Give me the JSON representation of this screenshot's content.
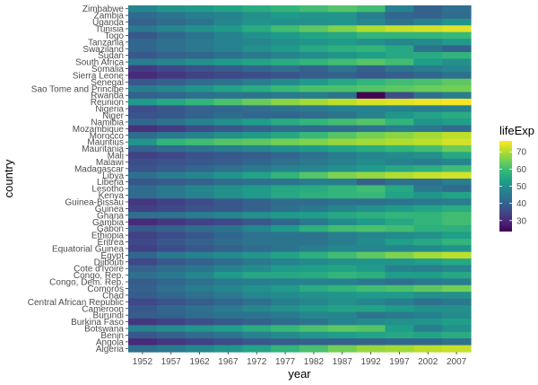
{
  "chart_data": {
    "type": "heatmap",
    "xlabel": "year",
    "ylabel": "country",
    "x": [
      "1952",
      "1957",
      "1962",
      "1967",
      "1972",
      "1977",
      "1982",
      "1987",
      "1992",
      "1997",
      "2002",
      "2007"
    ],
    "y_top_to_bottom": [
      "Zimbabwe",
      "Zambia",
      "Uganda",
      "Tunisia",
      "Togo",
      "Tanzania",
      "Swaziland",
      "Sudan",
      "South Africa",
      "Somalia",
      "Sierra Leone",
      "Senegal",
      "Sao Tome and Principe",
      "Rwanda",
      "Reunion",
      "Nigeria",
      "Niger",
      "Namibia",
      "Mozambique",
      "Morocco",
      "Mauritius",
      "Mauritania",
      "Mali",
      "Malawi",
      "Madagascar",
      "Libya",
      "Liberia",
      "Lesotho",
      "Kenya",
      "Guinea-Bissau",
      "Guinea",
      "Ghana",
      "Gambia",
      "Gabon",
      "Ethiopia",
      "Eritrea",
      "Equatorial Guinea",
      "Egypt",
      "Djibouti",
      "Cote d'Ivoire",
      "Congo, Rep.",
      "Congo, Dem. Rep.",
      "Comoros",
      "Chad",
      "Central African Republic",
      "Cameroon",
      "Burundi",
      "Burkina Faso",
      "Botswana",
      "Benin",
      "Angola",
      "Algeria"
    ],
    "values": [
      [
        48,
        51,
        52,
        54,
        56,
        58,
        60,
        62,
        60,
        47,
        40,
        43
      ],
      [
        42,
        44,
        46,
        47,
        50,
        52,
        51,
        51,
        46,
        41,
        40,
        42
      ],
      [
        40,
        42,
        44,
        48,
        51,
        50,
        50,
        51,
        48,
        44,
        47,
        51
      ],
      [
        45,
        48,
        50,
        52,
        56,
        60,
        63,
        66,
        70,
        72,
        73,
        74
      ],
      [
        38,
        41,
        44,
        47,
        50,
        52,
        54,
        55,
        58,
        58,
        58,
        59
      ],
      [
        41,
        43,
        45,
        47,
        48,
        50,
        51,
        52,
        50,
        48,
        49,
        52
      ],
      [
        41,
        43,
        45,
        47,
        50,
        52,
        55,
        57,
        58,
        55,
        44,
        40
      ],
      [
        38,
        40,
        41,
        43,
        45,
        47,
        49,
        51,
        53,
        55,
        56,
        58
      ],
      [
        46,
        48,
        50,
        52,
        54,
        56,
        58,
        60,
        62,
        60,
        53,
        50
      ],
      [
        33,
        35,
        37,
        39,
        41,
        43,
        40,
        44,
        40,
        44,
        46,
        48
      ],
      [
        30,
        32,
        34,
        35,
        36,
        37,
        39,
        40,
        38,
        39,
        41,
        43
      ],
      [
        38,
        40,
        42,
        44,
        46,
        49,
        52,
        55,
        58,
        60,
        61,
        63
      ],
      [
        46,
        48,
        51,
        54,
        56,
        59,
        61,
        61,
        62,
        63,
        64,
        65
      ],
      [
        40,
        41,
        43,
        44,
        44,
        45,
        46,
        44,
        24,
        36,
        43,
        46
      ],
      [
        52,
        55,
        58,
        61,
        64,
        67,
        69,
        71,
        73,
        74,
        75,
        76
      ],
      [
        36,
        38,
        40,
        41,
        42,
        44,
        45,
        47,
        47,
        47,
        46,
        47
      ],
      [
        37,
        38,
        40,
        42,
        41,
        41,
        42,
        44,
        47,
        51,
        54,
        56
      ],
      [
        41,
        44,
        47,
        50,
        53,
        56,
        58,
        60,
        62,
        58,
        51,
        53
      ],
      [
        31,
        33,
        36,
        38,
        40,
        42,
        42,
        42,
        44,
        46,
        45,
        42
      ],
      [
        42,
        45,
        47,
        50,
        52,
        55,
        59,
        62,
        65,
        67,
        69,
        71
      ],
      [
        51,
        58,
        60,
        62,
        63,
        65,
        66,
        68,
        69,
        70,
        71,
        73
      ],
      [
        40,
        42,
        44,
        46,
        48,
        50,
        52,
        54,
        56,
        58,
        60,
        64
      ],
      [
        34,
        35,
        37,
        38,
        39,
        41,
        43,
        46,
        48,
        49,
        50,
        55
      ],
      [
        36,
        37,
        38,
        39,
        41,
        43,
        45,
        47,
        49,
        47,
        46,
        48
      ],
      [
        37,
        39,
        41,
        43,
        45,
        47,
        48,
        50,
        52,
        55,
        57,
        60
      ],
      [
        43,
        46,
        48,
        51,
        54,
        58,
        62,
        66,
        68,
        70,
        72,
        73
      ],
      [
        38,
        39,
        40,
        42,
        43,
        44,
        46,
        46,
        40,
        43,
        43,
        46
      ],
      [
        42,
        45,
        48,
        50,
        52,
        55,
        56,
        58,
        60,
        55,
        45,
        42
      ],
      [
        42,
        45,
        47,
        50,
        52,
        55,
        57,
        58,
        59,
        54,
        51,
        54
      ],
      [
        32,
        34,
        36,
        38,
        40,
        42,
        42,
        43,
        43,
        44,
        45,
        46
      ],
      [
        34,
        35,
        37,
        38,
        40,
        43,
        45,
        48,
        50,
        52,
        54,
        56
      ],
      [
        43,
        44,
        46,
        48,
        50,
        52,
        53,
        55,
        57,
        58,
        58,
        60
      ],
      [
        30,
        32,
        34,
        35,
        38,
        41,
        45,
        49,
        52,
        55,
        58,
        60
      ],
      [
        38,
        40,
        42,
        44,
        48,
        52,
        57,
        60,
        61,
        60,
        57,
        57
      ],
      [
        34,
        36,
        38,
        41,
        43,
        44,
        44,
        46,
        48,
        49,
        50,
        53
      ],
      [
        35,
        38,
        40,
        42,
        44,
        44,
        44,
        46,
        49,
        53,
        55,
        58
      ],
      [
        34,
        36,
        38,
        40,
        42,
        44,
        46,
        48,
        48,
        48,
        49,
        51
      ],
      [
        41,
        45,
        47,
        49,
        51,
        54,
        57,
        60,
        63,
        66,
        69,
        71
      ],
      [
        35,
        38,
        40,
        42,
        45,
        47,
        49,
        50,
        51,
        51,
        53,
        55
      ],
      [
        40,
        42,
        44,
        47,
        49,
        52,
        53,
        54,
        52,
        47,
        46,
        48
      ],
      [
        43,
        45,
        48,
        52,
        55,
        55,
        56,
        58,
        57,
        53,
        53,
        55
      ],
      [
        39,
        41,
        43,
        45,
        46,
        47,
        47,
        47,
        45,
        43,
        45,
        46
      ],
      [
        40,
        43,
        46,
        48,
        50,
        52,
        56,
        58,
        60,
        61,
        63,
        65
      ],
      [
        39,
        41,
        43,
        45,
        48,
        49,
        50,
        51,
        52,
        52,
        50,
        50
      ],
      [
        35,
        37,
        39,
        41,
        43,
        46,
        48,
        50,
        48,
        46,
        43,
        45
      ],
      [
        38,
        41,
        43,
        45,
        48,
        50,
        52,
        54,
        54,
        52,
        50,
        50
      ],
      [
        39,
        40,
        42,
        44,
        44,
        45,
        48,
        48,
        44,
        45,
        47,
        49
      ],
      [
        32,
        34,
        36,
        38,
        40,
        42,
        44,
        47,
        49,
        50,
        51,
        53
      ],
      [
        47,
        49,
        51,
        53,
        56,
        59,
        61,
        63,
        62,
        53,
        46,
        50
      ],
      [
        38,
        40,
        42,
        44,
        47,
        49,
        51,
        53,
        54,
        55,
        54,
        56
      ],
      [
        30,
        32,
        34,
        36,
        38,
        39,
        40,
        40,
        40,
        41,
        41,
        43
      ],
      [
        43,
        45,
        48,
        51,
        54,
        58,
        61,
        65,
        68,
        69,
        71,
        72
      ]
    ],
    "legend": {
      "title": "lifeExp",
      "ticks": [
        30,
        40,
        50,
        60,
        70
      ],
      "range": [
        23.6,
        76.4
      ],
      "placement": "right"
    },
    "colorscale": [
      "#440154",
      "#482878",
      "#3e4a89",
      "#31688e",
      "#26828e",
      "#1f9e89",
      "#35b779",
      "#6ece58",
      "#b5de2b",
      "#fde725"
    ],
    "panel_background": "#ebebeb"
  }
}
